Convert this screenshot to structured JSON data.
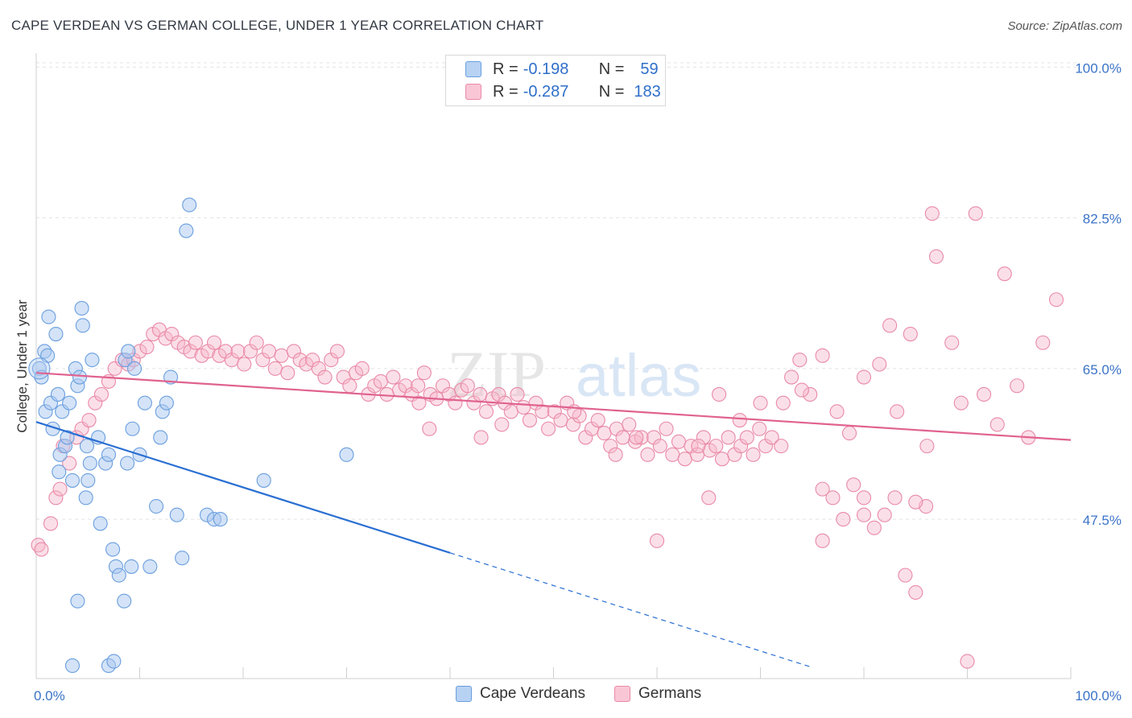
{
  "header": {
    "title": "CAPE VERDEAN VS GERMAN COLLEGE, UNDER 1 YEAR CORRELATION CHART",
    "source": "Source: ZipAtlas.com"
  },
  "legend": {
    "rows": [
      {
        "r_label": "R =",
        "r_value": "-0.198",
        "n_label": "N =",
        "n_value": "59"
      },
      {
        "r_label": "R =",
        "r_value": "-0.287",
        "n_label": "N =",
        "n_value": "183"
      }
    ]
  },
  "watermark": {
    "zip": "ZIP",
    "atlas": "atlas"
  },
  "colors": {
    "blue_fill": "#a9c8f0",
    "blue_stroke": "#6a9fdf",
    "blue_line": "#2a6fd2",
    "pink_fill": "#f7b9cc",
    "pink_stroke": "#e98aa8",
    "pink_line": "#e0628f",
    "axis_label": "#3b73c7",
    "grid": "#e3e3e3"
  },
  "chart_data": {
    "type": "scatter",
    "title": "CAPE VERDEAN VS GERMAN COLLEGE, UNDER 1 YEAR CORRELATION CHART",
    "xlabel": "",
    "ylabel": "College, Under 1 year",
    "xlim": [
      0,
      100
    ],
    "ylim": [
      29,
      102
    ],
    "x_tick_labels": [
      "0.0%",
      "100.0%"
    ],
    "y_ticks": [
      47.5,
      65.0,
      82.5,
      100.0
    ],
    "y_tick_labels": [
      "47.5%",
      "65.0%",
      "82.5%",
      "100.0%"
    ],
    "series": [
      {
        "name": "Cape Verdeans",
        "color": "#a9c8f0",
        "R": -0.198,
        "N": 59,
        "trend": {
          "x0": 0,
          "y0": 58.8,
          "x1": 40,
          "y1": 43.6,
          "dash_to_x": 75,
          "dash_to_y": 30.3
        },
        "points": [
          [
            0.3,
            65
          ],
          [
            0.5,
            64
          ],
          [
            0.8,
            67
          ],
          [
            1.1,
            66.5
          ],
          [
            1.2,
            71
          ],
          [
            0.9,
            60
          ],
          [
            1.4,
            61
          ],
          [
            1.6,
            58
          ],
          [
            1.9,
            69
          ],
          [
            2.1,
            62
          ],
          [
            2.3,
            55
          ],
          [
            2.5,
            60
          ],
          [
            2.8,
            56
          ],
          [
            2.2,
            53
          ],
          [
            3.0,
            57
          ],
          [
            3.2,
            61
          ],
          [
            3.5,
            52
          ],
          [
            3.8,
            65
          ],
          [
            4.0,
            63
          ],
          [
            4.2,
            64
          ],
          [
            4.5,
            70
          ],
          [
            4.4,
            72
          ],
          [
            4.8,
            50
          ],
          [
            4.9,
            56
          ],
          [
            5.0,
            52
          ],
          [
            5.2,
            54
          ],
          [
            5.4,
            66
          ],
          [
            6.0,
            57
          ],
          [
            6.2,
            47
          ],
          [
            6.7,
            54
          ],
          [
            7.0,
            55
          ],
          [
            7.4,
            44
          ],
          [
            7.7,
            42
          ],
          [
            8.0,
            41
          ],
          [
            8.6,
            66
          ],
          [
            8.8,
            54
          ],
          [
            8.9,
            67
          ],
          [
            9.3,
            58
          ],
          [
            9.5,
            65
          ],
          [
            10.0,
            55
          ],
          [
            10.5,
            61
          ],
          [
            11.0,
            42
          ],
          [
            11.6,
            49
          ],
          [
            12.0,
            57
          ],
          [
            12.2,
            60
          ],
          [
            12.6,
            61
          ],
          [
            13.0,
            64
          ],
          [
            13.6,
            48
          ],
          [
            14.1,
            43
          ],
          [
            14.5,
            81
          ],
          [
            14.8,
            84
          ],
          [
            16.5,
            48
          ],
          [
            17.2,
            47.5
          ],
          [
            17.8,
            47.5
          ],
          [
            22.0,
            52
          ],
          [
            30.0,
            55
          ],
          [
            3.5,
            30.5
          ],
          [
            4.0,
            38
          ],
          [
            7.0,
            30.5
          ],
          [
            7.5,
            31
          ],
          [
            8.5,
            38
          ],
          [
            9.2,
            42
          ]
        ]
      },
      {
        "name": "Germans",
        "color": "#f7b9cc",
        "R": -0.287,
        "N": 183,
        "trend": {
          "x0": 0,
          "y0": 64.5,
          "x1": 100,
          "y1": 56.7
        },
        "points": [
          [
            0.2,
            44.5
          ],
          [
            0.5,
            44
          ],
          [
            1.4,
            47
          ],
          [
            1.9,
            50
          ],
          [
            2.3,
            51
          ],
          [
            2.6,
            56
          ],
          [
            3.2,
            54
          ],
          [
            3.9,
            57
          ],
          [
            4.4,
            58
          ],
          [
            5.1,
            59
          ],
          [
            5.7,
            61
          ],
          [
            6.3,
            62
          ],
          [
            7.0,
            63.5
          ],
          [
            7.6,
            65
          ],
          [
            8.3,
            66
          ],
          [
            8.9,
            65.5
          ],
          [
            9.4,
            66
          ],
          [
            10.0,
            67
          ],
          [
            10.7,
            67.5
          ],
          [
            11.3,
            69
          ],
          [
            11.9,
            69.5
          ],
          [
            12.5,
            68.5
          ],
          [
            13.1,
            69
          ],
          [
            13.7,
            68
          ],
          [
            14.3,
            67.5
          ],
          [
            14.9,
            67
          ],
          [
            15.4,
            68
          ],
          [
            16.0,
            66.5
          ],
          [
            16.6,
            67
          ],
          [
            17.2,
            68
          ],
          [
            17.7,
            66.5
          ],
          [
            18.3,
            67
          ],
          [
            18.9,
            66
          ],
          [
            19.5,
            67
          ],
          [
            20.1,
            65.5
          ],
          [
            20.7,
            67
          ],
          [
            21.3,
            68
          ],
          [
            21.9,
            66
          ],
          [
            22.5,
            67
          ],
          [
            23.1,
            65
          ],
          [
            23.7,
            66.5
          ],
          [
            24.3,
            64.5
          ],
          [
            24.9,
            67
          ],
          [
            25.5,
            66
          ],
          [
            26.1,
            65.5
          ],
          [
            26.7,
            66
          ],
          [
            27.3,
            65
          ],
          [
            27.9,
            64
          ],
          [
            28.5,
            66
          ],
          [
            29.1,
            67
          ],
          [
            29.7,
            64
          ],
          [
            30.3,
            63
          ],
          [
            30.9,
            64.5
          ],
          [
            31.5,
            65
          ],
          [
            32.1,
            62
          ],
          [
            32.7,
            63
          ],
          [
            33.3,
            63.5
          ],
          [
            33.9,
            62
          ],
          [
            34.5,
            64
          ],
          [
            35.1,
            62.5
          ],
          [
            35.7,
            63
          ],
          [
            36.3,
            62
          ],
          [
            36.9,
            63
          ],
          [
            37.5,
            64.5
          ],
          [
            38.1,
            62
          ],
          [
            38.7,
            61.5
          ],
          [
            39.3,
            63
          ],
          [
            39.9,
            62
          ],
          [
            40.5,
            61
          ],
          [
            41.1,
            62.5
          ],
          [
            41.7,
            63
          ],
          [
            42.3,
            61
          ],
          [
            42.9,
            62
          ],
          [
            43.5,
            60
          ],
          [
            44.1,
            61.5
          ],
          [
            44.7,
            62
          ],
          [
            45.3,
            61
          ],
          [
            45.9,
            60
          ],
          [
            46.5,
            62
          ],
          [
            47.1,
            60.5
          ],
          [
            47.7,
            59
          ],
          [
            48.3,
            61
          ],
          [
            48.9,
            60
          ],
          [
            49.5,
            58
          ],
          [
            50.1,
            60
          ],
          [
            50.7,
            59
          ],
          [
            51.3,
            61
          ],
          [
            51.9,
            58.5
          ],
          [
            52.5,
            59.5
          ],
          [
            53.1,
            57
          ],
          [
            53.7,
            58
          ],
          [
            54.3,
            59
          ],
          [
            54.9,
            57.5
          ],
          [
            55.5,
            56
          ],
          [
            56.1,
            58
          ],
          [
            56.7,
            57
          ],
          [
            57.3,
            58.5
          ],
          [
            57.9,
            56.5
          ],
          [
            58.5,
            57
          ],
          [
            59.1,
            55
          ],
          [
            59.7,
            57
          ],
          [
            60.3,
            56
          ],
          [
            60.9,
            58
          ],
          [
            61.5,
            55
          ],
          [
            62.1,
            56.5
          ],
          [
            62.7,
            54.5
          ],
          [
            63.3,
            56
          ],
          [
            63.9,
            55
          ],
          [
            64.5,
            57
          ],
          [
            65.1,
            55.5
          ],
          [
            65.7,
            56
          ],
          [
            66.3,
            54.5
          ],
          [
            66.9,
            57
          ],
          [
            67.5,
            55
          ],
          [
            68.1,
            56
          ],
          [
            68.7,
            57
          ],
          [
            69.3,
            55
          ],
          [
            69.9,
            58
          ],
          [
            70.5,
            56
          ],
          [
            71.1,
            57
          ],
          [
            72.2,
            61
          ],
          [
            73.0,
            64
          ],
          [
            73.8,
            66
          ],
          [
            74.8,
            62
          ],
          [
            76.0,
            66.5
          ],
          [
            77.4,
            60
          ],
          [
            78.6,
            57.5
          ],
          [
            80.0,
            64
          ],
          [
            81.5,
            65.5
          ],
          [
            82.5,
            70
          ],
          [
            83.2,
            60
          ],
          [
            84.5,
            69
          ],
          [
            86.1,
            56
          ],
          [
            86.6,
            83
          ],
          [
            87.0,
            78
          ],
          [
            88.5,
            68
          ],
          [
            89.4,
            61
          ],
          [
            90.8,
            83
          ],
          [
            91.6,
            62
          ],
          [
            92.9,
            58.5
          ],
          [
            93.6,
            76
          ],
          [
            94.8,
            63
          ],
          [
            95.9,
            57
          ],
          [
            97.3,
            68
          ],
          [
            98.6,
            73
          ],
          [
            43.0,
            57
          ],
          [
            45.0,
            58.5
          ],
          [
            52.0,
            60
          ],
          [
            58.0,
            57
          ],
          [
            64.0,
            56
          ],
          [
            66.0,
            62
          ],
          [
            68.0,
            59
          ],
          [
            70.0,
            61
          ],
          [
            72.0,
            56
          ],
          [
            74.0,
            62.5
          ],
          [
            76.0,
            51
          ],
          [
            77.0,
            50
          ],
          [
            78.0,
            47.5
          ],
          [
            79.0,
            51.5
          ],
          [
            80.0,
            48
          ],
          [
            81.0,
            46.5
          ],
          [
            82.0,
            48
          ],
          [
            83.0,
            50
          ],
          [
            84.0,
            41
          ],
          [
            85.0,
            39
          ],
          [
            86.0,
            49
          ],
          [
            76.0,
            45
          ],
          [
            60.0,
            45
          ],
          [
            65.0,
            50
          ],
          [
            38.0,
            58
          ],
          [
            37.0,
            61
          ],
          [
            56.0,
            55
          ],
          [
            80.0,
            50
          ],
          [
            85.0,
            49.5
          ],
          [
            90.0,
            31
          ]
        ]
      }
    ]
  },
  "bottom_legend": {
    "items": [
      "Cape Verdeans",
      "Germans"
    ]
  }
}
